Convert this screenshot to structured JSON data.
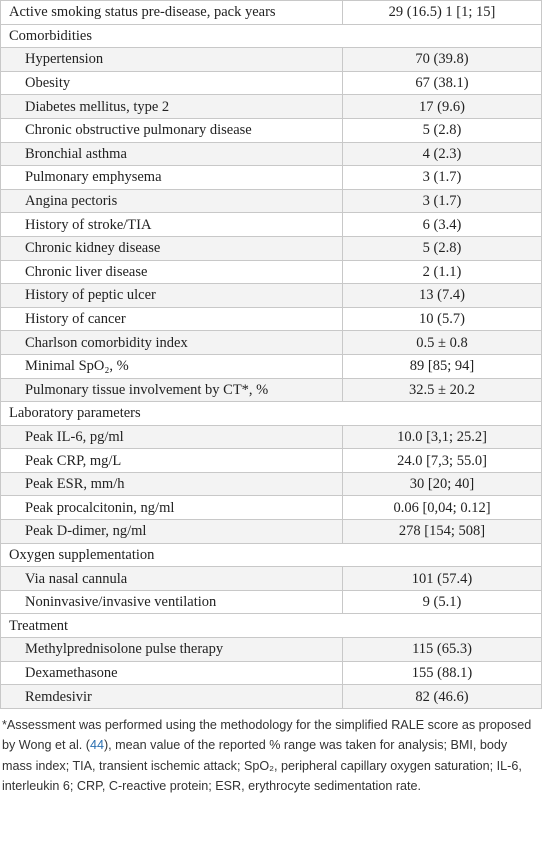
{
  "table": {
    "rows": [
      {
        "label": "Active smoking status pre-disease, pack years",
        "value": "29 (16.5) 1 [1; 15]"
      },
      {
        "section": "Comorbidities"
      },
      {
        "label": "Hypertension",
        "value": "70 (39.8)"
      },
      {
        "label": "Obesity",
        "value": "67 (38.1)"
      },
      {
        "label": "Diabetes mellitus, type 2",
        "value": "17 (9.6)"
      },
      {
        "label": "Chronic obstructive pulmonary disease",
        "value": "5 (2.8)"
      },
      {
        "label": "Bronchial asthma",
        "value": "4 (2.3)"
      },
      {
        "label": "Pulmonary emphysema",
        "value": "3 (1.7)"
      },
      {
        "label": "Angina pectoris",
        "value": "3 (1.7)"
      },
      {
        "label": "History of stroke/TIA",
        "value": "6 (3.4)"
      },
      {
        "label": "Chronic kidney disease",
        "value": "5 (2.8)"
      },
      {
        "label": "Chronic liver disease",
        "value": "2 (1.1)"
      },
      {
        "label": "History of peptic ulcer",
        "value": "13 (7.4)"
      },
      {
        "label": "History of cancer",
        "value": "10 (5.7)"
      },
      {
        "label": "Charlson comorbidity index",
        "value": "0.5 ± 0.8"
      },
      {
        "label": "Minimal SpO₂, %",
        "value": "89 [85; 94]"
      },
      {
        "label": "Pulmonary tissue involvement by CT*, %",
        "value": "32.5 ± 20.2"
      },
      {
        "section": "Laboratory parameters"
      },
      {
        "label": "Peak IL-6, pg/ml",
        "value": "10.0 [3,1; 25.2]"
      },
      {
        "label": "Peak CRP, mg/L",
        "value": "24.0 [7,3; 55.0]"
      },
      {
        "label": "Peak ESR, mm/h",
        "value": "30 [20; 40]"
      },
      {
        "label": "Peak procalcitonin, ng/ml",
        "value": "0.06 [0,04; 0.12]"
      },
      {
        "label": "Peak D-dimer, ng/ml",
        "value": "278 [154; 508]"
      },
      {
        "section": "Oxygen supplementation"
      },
      {
        "label": "Via nasal cannula",
        "value": "101 (57.4)"
      },
      {
        "label": "Noninvasive/invasive ventilation",
        "value": "9 (5.1)"
      },
      {
        "section": "Treatment"
      },
      {
        "label": "Methylprednisolone pulse therapy",
        "value": "115 (65.3)"
      },
      {
        "label": "Dexamethasone",
        "value": "155 (88.1)"
      },
      {
        "label": "Remdesivir",
        "value": "82 (46.6)"
      }
    ]
  },
  "footnote": {
    "before": "*Assessment was performed using the methodology for the simplified RALE score as proposed by Wong et al. (",
    "link": "44",
    "after": "), mean value of the reported % range was taken for analysis; BMI, body mass index; TIA, transient ischemic attack; SpO₂, peripheral capillary oxygen saturation; IL-6, interleukin 6; CRP, C-reactive protein; ESR, erythrocyte sedimentation rate."
  }
}
